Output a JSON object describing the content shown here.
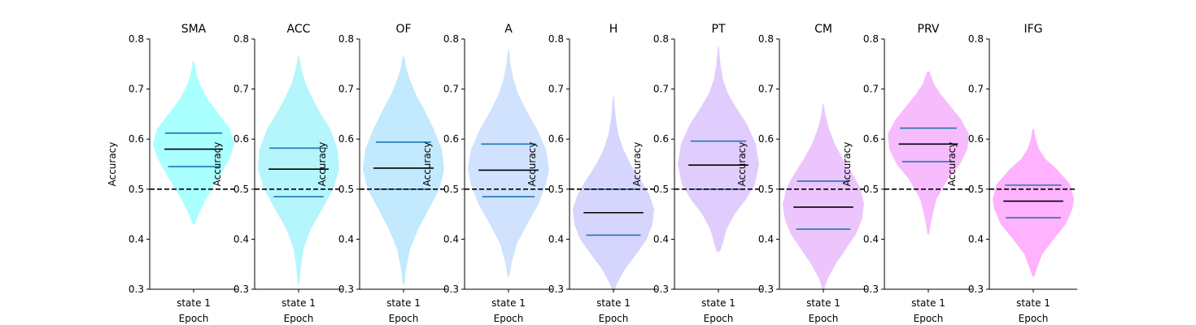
{
  "chart_data": {
    "type": "violin",
    "ylabel": "Accuracy",
    "xlabel": "Epoch",
    "category": "state 1",
    "ylim": [
      0.3,
      0.8
    ],
    "yticks": [
      "0.3",
      "0.4",
      "0.5",
      "0.6",
      "0.7",
      "0.8"
    ],
    "chance_level": 0.5,
    "reference_line_style": "black dashed",
    "quartile_color": "#1f77b4",
    "median_color": "#000000",
    "panels": [
      {
        "title": "SMA",
        "color": "#aaffff",
        "min": 0.43,
        "max": 0.755,
        "q1": 0.545,
        "median": 0.58,
        "q3": 0.612,
        "density": [
          [
            0.43,
            0.03
          ],
          [
            0.45,
            0.12
          ],
          [
            0.48,
            0.3
          ],
          [
            0.52,
            0.6
          ],
          [
            0.56,
            0.88
          ],
          [
            0.59,
            1.0
          ],
          [
            0.62,
            0.9
          ],
          [
            0.65,
            0.62
          ],
          [
            0.68,
            0.34
          ],
          [
            0.71,
            0.15
          ],
          [
            0.73,
            0.07
          ],
          [
            0.755,
            0.02
          ]
        ]
      },
      {
        "title": "ACC",
        "color": "#b5f6fd",
        "min": 0.31,
        "max": 0.765,
        "q1": 0.485,
        "median": 0.54,
        "q3": 0.582,
        "density": [
          [
            0.31,
            0.02
          ],
          [
            0.34,
            0.05
          ],
          [
            0.38,
            0.12
          ],
          [
            0.42,
            0.3
          ],
          [
            0.46,
            0.58
          ],
          [
            0.5,
            0.85
          ],
          [
            0.54,
            1.0
          ],
          [
            0.58,
            0.96
          ],
          [
            0.62,
            0.78
          ],
          [
            0.65,
            0.55
          ],
          [
            0.68,
            0.35
          ],
          [
            0.71,
            0.18
          ],
          [
            0.74,
            0.07
          ],
          [
            0.765,
            0.02
          ]
        ]
      },
      {
        "title": "OF",
        "color": "#c2e9fd",
        "min": 0.31,
        "max": 0.765,
        "q1": 0.5,
        "median": 0.542,
        "q3": 0.594,
        "density": [
          [
            0.31,
            0.02
          ],
          [
            0.34,
            0.06
          ],
          [
            0.38,
            0.16
          ],
          [
            0.42,
            0.36
          ],
          [
            0.46,
            0.62
          ],
          [
            0.5,
            0.88
          ],
          [
            0.54,
            1.0
          ],
          [
            0.58,
            0.94
          ],
          [
            0.62,
            0.74
          ],
          [
            0.66,
            0.5
          ],
          [
            0.69,
            0.3
          ],
          [
            0.72,
            0.15
          ],
          [
            0.745,
            0.06
          ],
          [
            0.765,
            0.02
          ]
        ]
      },
      {
        "title": "A",
        "color": "#d0e2fd",
        "min": 0.325,
        "max": 0.78,
        "q1": 0.485,
        "median": 0.538,
        "q3": 0.59,
        "density": [
          [
            0.325,
            0.02
          ],
          [
            0.35,
            0.07
          ],
          [
            0.39,
            0.2
          ],
          [
            0.43,
            0.46
          ],
          [
            0.47,
            0.74
          ],
          [
            0.51,
            0.92
          ],
          [
            0.54,
            1.0
          ],
          [
            0.58,
            0.92
          ],
          [
            0.62,
            0.7
          ],
          [
            0.66,
            0.42
          ],
          [
            0.69,
            0.24
          ],
          [
            0.72,
            0.12
          ],
          [
            0.75,
            0.05
          ],
          [
            0.78,
            0.01
          ]
        ]
      },
      {
        "title": "H",
        "color": "#d5d5fd",
        "min": 0.295,
        "max": 0.685,
        "q1": 0.408,
        "median": 0.453,
        "q3": 0.5,
        "density": [
          [
            0.295,
            0.02
          ],
          [
            0.31,
            0.08
          ],
          [
            0.34,
            0.28
          ],
          [
            0.37,
            0.56
          ],
          [
            0.4,
            0.82
          ],
          [
            0.43,
            0.96
          ],
          [
            0.46,
            1.0
          ],
          [
            0.49,
            0.88
          ],
          [
            0.52,
            0.66
          ],
          [
            0.55,
            0.42
          ],
          [
            0.58,
            0.24
          ],
          [
            0.61,
            0.12
          ],
          [
            0.64,
            0.06
          ],
          [
            0.685,
            0.01
          ]
        ]
      },
      {
        "title": "PT",
        "color": "#e0cdfd",
        "min": 0.375,
        "max": 0.785,
        "q1": 0.5,
        "median": 0.548,
        "q3": 0.596,
        "density": [
          [
            0.375,
            0.04
          ],
          [
            0.39,
            0.1
          ],
          [
            0.42,
            0.2
          ],
          [
            0.45,
            0.4
          ],
          [
            0.48,
            0.68
          ],
          [
            0.51,
            0.9
          ],
          [
            0.55,
            1.0
          ],
          [
            0.59,
            0.92
          ],
          [
            0.63,
            0.7
          ],
          [
            0.66,
            0.46
          ],
          [
            0.69,
            0.24
          ],
          [
            0.72,
            0.11
          ],
          [
            0.75,
            0.05
          ],
          [
            0.785,
            0.01
          ]
        ]
      },
      {
        "title": "CM",
        "color": "#ecc5fd",
        "min": 0.3,
        "max": 0.67,
        "q1": 0.42,
        "median": 0.464,
        "q3": 0.516,
        "density": [
          [
            0.3,
            0.02
          ],
          [
            0.32,
            0.1
          ],
          [
            0.35,
            0.3
          ],
          [
            0.38,
            0.55
          ],
          [
            0.41,
            0.8
          ],
          [
            0.44,
            0.95
          ],
          [
            0.47,
            1.0
          ],
          [
            0.5,
            0.92
          ],
          [
            0.53,
            0.72
          ],
          [
            0.56,
            0.48
          ],
          [
            0.59,
            0.28
          ],
          [
            0.62,
            0.14
          ],
          [
            0.645,
            0.06
          ],
          [
            0.67,
            0.01
          ]
        ]
      },
      {
        "title": "PRV",
        "color": "#f6bcfd",
        "min": 0.41,
        "max": 0.735,
        "q1": 0.555,
        "median": 0.59,
        "q3": 0.622,
        "density": [
          [
            0.41,
            0.02
          ],
          [
            0.44,
            0.08
          ],
          [
            0.48,
            0.2
          ],
          [
            0.52,
            0.48
          ],
          [
            0.55,
            0.78
          ],
          [
            0.58,
            0.96
          ],
          [
            0.61,
            1.0
          ],
          [
            0.64,
            0.8
          ],
          [
            0.67,
            0.5
          ],
          [
            0.69,
            0.3
          ],
          [
            0.71,
            0.14
          ],
          [
            0.735,
            0.03
          ]
        ]
      },
      {
        "title": "IFG",
        "color": "#ffb2fd",
        "min": 0.325,
        "max": 0.62,
        "q1": 0.443,
        "median": 0.476,
        "q3": 0.508,
        "density": [
          [
            0.325,
            0.02
          ],
          [
            0.34,
            0.08
          ],
          [
            0.37,
            0.22
          ],
          [
            0.4,
            0.5
          ],
          [
            0.43,
            0.8
          ],
          [
            0.46,
            0.96
          ],
          [
            0.48,
            1.0
          ],
          [
            0.51,
            0.9
          ],
          [
            0.54,
            0.58
          ],
          [
            0.56,
            0.3
          ],
          [
            0.58,
            0.14
          ],
          [
            0.6,
            0.06
          ],
          [
            0.62,
            0.02
          ]
        ]
      }
    ]
  }
}
